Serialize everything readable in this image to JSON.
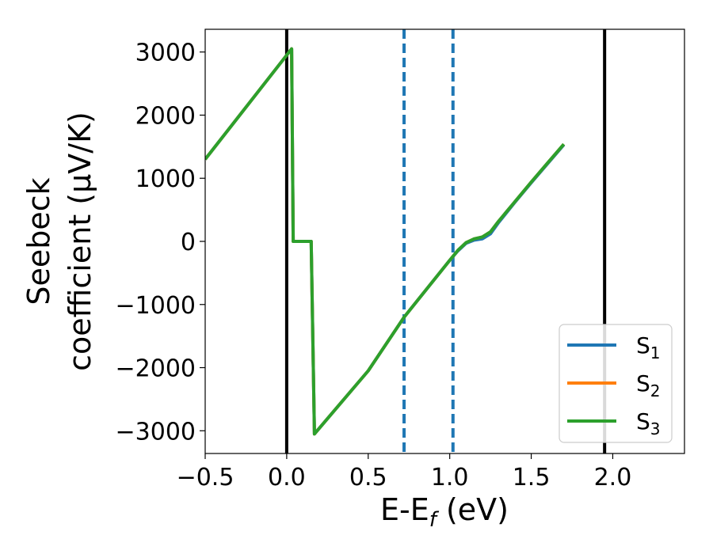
{
  "chart_data": {
    "type": "line",
    "xlabel_main": "E-E",
    "xlabel_sub": "f",
    "xlabel_unit": " (eV)",
    "ylabel_line1": "Seebeck",
    "ylabel_line2": "coefficient  (μV/K)",
    "xlim": [
      -0.5,
      2.44
    ],
    "ylim": [
      -3360,
      3360
    ],
    "x_ticks": [
      -0.5,
      0.0,
      0.5,
      1.0,
      1.5,
      2.0
    ],
    "x_tick_labels": [
      "−0.5",
      "0.0",
      "0.5",
      "1.0",
      "1.5",
      "2.0"
    ],
    "y_ticks": [
      -3000,
      -2000,
      -1000,
      0,
      1000,
      2000,
      3000
    ],
    "y_tick_labels": [
      "−3000",
      "−2000",
      "−1000",
      "0",
      "1000",
      "2000",
      "3000"
    ],
    "grid": false,
    "legend_position": "bottom-right",
    "vertical_lines": [
      {
        "x": 0.0,
        "color": "#000000",
        "style": "solid"
      },
      {
        "x": 1.95,
        "color": "#000000",
        "style": "solid"
      },
      {
        "x": 0.72,
        "color": "#1f77b4",
        "style": "dashed"
      },
      {
        "x": 1.02,
        "color": "#1f77b4",
        "style": "dashed"
      }
    ],
    "series": [
      {
        "name_main": "S",
        "name_sub": "1",
        "color": "#1f77b4",
        "x": [
          -0.5,
          0.0,
          0.03,
          0.04,
          0.15,
          0.17,
          0.5,
          0.72,
          1.0,
          1.05,
          1.1,
          1.15,
          1.2,
          1.25,
          1.3,
          1.4,
          1.5,
          1.6,
          1.7
        ],
        "y": [
          1300,
          2950,
          3050,
          0,
          0,
          -3050,
          -2050,
          -1200,
          -300,
          -150,
          -30,
          20,
          40,
          120,
          300,
          620,
          930,
          1230,
          1530
        ]
      },
      {
        "name_main": "S",
        "name_sub": "2",
        "color": "#ff7f0e",
        "x": [
          -0.5,
          0.0,
          0.03,
          0.04,
          0.15,
          0.17,
          0.5,
          0.72,
          1.0,
          1.05,
          1.1,
          1.15,
          1.2,
          1.25,
          1.3,
          1.4,
          1.5,
          1.6,
          1.7
        ],
        "y": [
          1300,
          2950,
          3050,
          0,
          0,
          -3050,
          -2050,
          -1200,
          -300,
          -140,
          -20,
          40,
          70,
          150,
          320,
          630,
          940,
          1240,
          1540
        ]
      },
      {
        "name_main": "S",
        "name_sub": "3",
        "color": "#2ca02c",
        "x": [
          -0.5,
          0.0,
          0.03,
          0.04,
          0.15,
          0.17,
          0.5,
          0.72,
          1.0,
          1.05,
          1.1,
          1.15,
          1.2,
          1.25,
          1.3,
          1.4,
          1.5,
          1.6,
          1.7
        ],
        "y": [
          1300,
          2950,
          3050,
          0,
          0,
          -3050,
          -2050,
          -1200,
          -300,
          -140,
          -20,
          40,
          70,
          150,
          320,
          630,
          940,
          1240,
          1540
        ]
      }
    ]
  }
}
